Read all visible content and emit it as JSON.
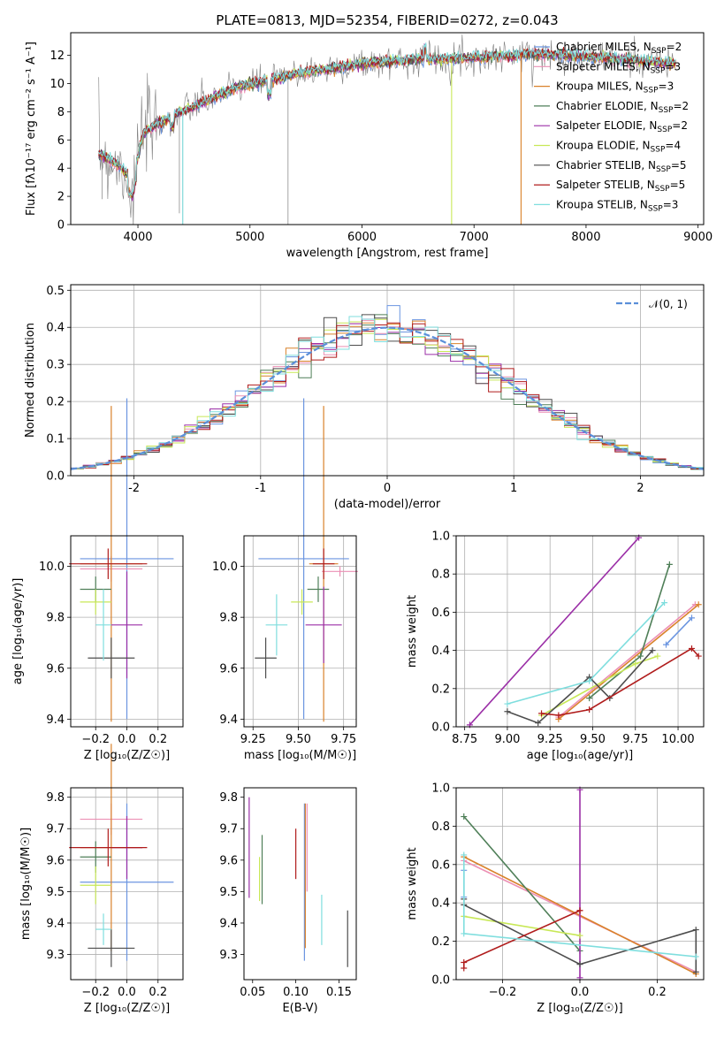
{
  "colors": {
    "chabrier_miles": "#6b95e0",
    "salpeter_miles": "#ec8fb4",
    "kroupa_miles": "#d9822b",
    "chabrier_elodie": "#4f7f58",
    "salpeter_elodie": "#9b2fa7",
    "kroupa_elodie": "#c8e857",
    "chabrier_stelib": "#4d4d4d",
    "salpeter_stelib": "#b01c1c",
    "kroupa_stelib": "#7fdede",
    "normal": "#5b8fd9",
    "data": "#7f7f7f"
  },
  "chart_data": [
    {
      "type": "line",
      "title": "PLATE=0813, MJD=52354, FIBERID=0272, z=0.043",
      "xlabel": "wavelength [Angstrom, rest frame]",
      "ylabel": "Flux [fλ10⁻¹⁷ erg cm⁻² s⁻¹ A⁻¹]",
      "xlim": [
        3400,
        9050
      ],
      "ylim": [
        0,
        13.6
      ],
      "xticks": [
        4000,
        5000,
        6000,
        7000,
        8000,
        9000
      ],
      "yticks": [
        0,
        2,
        4,
        6,
        8,
        10,
        12
      ],
      "x": [
        3650,
        3800,
        3950,
        4050,
        4300,
        4600,
        4900,
        5200,
        5500,
        6000,
        6500,
        7000,
        7500,
        8000,
        8500,
        8800
      ],
      "y": [
        5.0,
        4.4,
        3.2,
        6.5,
        7.7,
        8.7,
        9.8,
        10.3,
        10.8,
        11.4,
        11.7,
        11.8,
        12.1,
        11.9,
        11.6,
        11.4
      ],
      "legend": [
        {
          "label": "Chabrier MILES, N",
          "sub": "SSP",
          "tail": "=2",
          "color_key": "chabrier_miles"
        },
        {
          "label": "Salpeter MILES, N",
          "sub": "SSP",
          "tail": "=3",
          "color_key": "salpeter_miles"
        },
        {
          "label": "Kroupa MILES, N",
          "sub": "SSP",
          "tail": "=3",
          "color_key": "kroupa_miles"
        },
        {
          "label": "Chabrier ELODIE, N",
          "sub": "SSP",
          "tail": "=2",
          "color_key": "chabrier_elodie"
        },
        {
          "label": "Salpeter ELODIE, N",
          "sub": "SSP",
          "tail": "=2",
          "color_key": "salpeter_elodie"
        },
        {
          "label": "Kroupa ELODIE, N",
          "sub": "SSP",
          "tail": "=4",
          "color_key": "kroupa_elodie"
        },
        {
          "label": "Chabrier STELIB, N",
          "sub": "SSP",
          "tail": "=5",
          "color_key": "chabrier_stelib"
        },
        {
          "label": "Salpeter STELIB, N",
          "sub": "SSP",
          "tail": "=5",
          "color_key": "salpeter_stelib"
        },
        {
          "label": "Kroupa STELIB, N",
          "sub": "SSP",
          "tail": "=3",
          "color_key": "kroupa_stelib"
        }
      ],
      "legend_placement": "right"
    },
    {
      "type": "line",
      "xlabel": "(data-model)/error",
      "ylabel": "Normed distribution",
      "xlim": [
        -2.5,
        2.5
      ],
      "ylim": [
        0,
        0.515
      ],
      "xticks": [
        -2,
        -1,
        0,
        1,
        2
      ],
      "yticks": [
        0.0,
        0.1,
        0.2,
        0.3,
        0.4,
        0.5
      ],
      "grid": true,
      "legend": "𝒩(0, 1)",
      "legend_placement": "top-right"
    },
    {
      "type": "scatter",
      "xlabel": "Z [log₁₀(Z/Z☉)]",
      "ylabel": "age  [log₁₀(age/yr)]",
      "xlim": [
        -0.36,
        0.36
      ],
      "ylim": [
        9.37,
        10.12
      ],
      "xticks": [
        -0.2,
        0.0,
        0.2
      ],
      "xticklabels": [
        "−0.2",
        "0.0",
        "0.2"
      ],
      "yticks": [
        9.4,
        9.6,
        9.8,
        10.0
      ],
      "grid": true,
      "points": [
        {
          "k": "chabrier_miles",
          "x": 0.0,
          "xerr": 0.3,
          "y": 10.03,
          "yerr": 0.63
        },
        {
          "k": "salpeter_miles",
          "x": -0.1,
          "xerr": 0.2,
          "y": 9.99,
          "yerr": 0.05
        },
        {
          "k": "kroupa_miles",
          "x": -0.1,
          "xerr": 0.2,
          "y": 10.01,
          "yerr": 0.62
        },
        {
          "k": "chabrier_elodie",
          "x": -0.2,
          "xerr": 0.1,
          "y": 9.91,
          "yerr": 0.05
        },
        {
          "k": "salpeter_elodie",
          "x": 0.0,
          "xerr": 0.1,
          "y": 9.77,
          "yerr": 0.21
        },
        {
          "k": "kroupa_elodie",
          "x": -0.2,
          "xerr": 0.1,
          "y": 9.86,
          "yerr": 0.05
        },
        {
          "k": "chabrier_stelib",
          "x": -0.1,
          "xerr": 0.15,
          "y": 9.64,
          "yerr": 0.08
        },
        {
          "k": "salpeter_stelib",
          "x": -0.12,
          "xerr": 0.25,
          "y": 10.01,
          "yerr": 0.06
        },
        {
          "k": "kroupa_stelib",
          "x": -0.15,
          "xerr": 0.05,
          "y": 9.77,
          "yerr": 0.14
        }
      ]
    },
    {
      "type": "scatter",
      "xlabel": "mass [log₁₀(M/M☉)]",
      "ylabel": "",
      "xlim": [
        9.2,
        9.82
      ],
      "ylim": [
        9.37,
        10.12
      ],
      "xticks": [
        9.25,
        9.5,
        9.75
      ],
      "xticklabels": [
        "9.25",
        "9.50",
        "9.75"
      ],
      "yticks": [
        9.4,
        9.6,
        9.8,
        10.0
      ],
      "grid": true,
      "points": [
        {
          "k": "chabrier_miles",
          "x": 9.53,
          "xerr": 0.25,
          "y": 10.03,
          "yerr": 0.63
        },
        {
          "k": "salpeter_miles",
          "x": 9.73,
          "xerr": 0.1,
          "y": 9.98,
          "yerr": 0.02
        },
        {
          "k": "kroupa_miles",
          "x": 9.64,
          "xerr": 0.08,
          "y": 10.01,
          "yerr": 0.62
        },
        {
          "k": "chabrier_elodie",
          "x": 9.61,
          "xerr": 0.06,
          "y": 9.91,
          "yerr": 0.05
        },
        {
          "k": "salpeter_elodie",
          "x": 9.64,
          "xerr": 0.1,
          "y": 9.77,
          "yerr": 0.15
        },
        {
          "k": "kroupa_elodie",
          "x": 9.52,
          "xerr": 0.06,
          "y": 9.86,
          "yerr": 0.05
        },
        {
          "k": "chabrier_stelib",
          "x": 9.32,
          "xerr": 0.06,
          "y": 9.64,
          "yerr": 0.08
        },
        {
          "k": "salpeter_stelib",
          "x": 9.64,
          "xerr": 0.06,
          "y": 10.01,
          "yerr": 0.06
        },
        {
          "k": "kroupa_stelib",
          "x": 9.38,
          "xerr": 0.06,
          "y": 9.77,
          "yerr": 0.12
        }
      ]
    },
    {
      "type": "line",
      "xlabel": "age  [log₁₀(age/yr)]",
      "ylabel": "mass weight",
      "xlim": [
        8.7,
        10.15
      ],
      "ylim": [
        0,
        1.0
      ],
      "xticks": [
        8.75,
        9.0,
        9.25,
        9.5,
        9.75,
        10.0
      ],
      "xticklabels": [
        "8.75",
        "9.00",
        "9.25",
        "9.50",
        "9.75",
        "10.00"
      ],
      "yticks": [
        0.0,
        0.2,
        0.4,
        0.6,
        0.8,
        1.0
      ],
      "grid": true,
      "series": [
        {
          "k": "chabrier_miles",
          "x": [
            9.93,
            10.08
          ],
          "y": [
            0.43,
            0.57
          ]
        },
        {
          "k": "salpeter_miles",
          "x": [
            9.3,
            10.1
          ],
          "y": [
            0.05,
            0.64
          ]
        },
        {
          "k": "kroupa_miles",
          "x": [
            9.3,
            10.12
          ],
          "y": [
            0.04,
            0.64
          ]
        },
        {
          "k": "chabrier_elodie",
          "x": [
            9.48,
            9.78,
            9.95
          ],
          "y": [
            0.15,
            0.37,
            0.85
          ]
        },
        {
          "k": "salpeter_elodie",
          "x": [
            8.78,
            9.77
          ],
          "y": [
            0.01,
            0.99
          ]
        },
        {
          "k": "kroupa_elodie",
          "x": [
            9.2,
            9.75,
            9.88
          ],
          "y": [
            0.06,
            0.33,
            0.37
          ]
        },
        {
          "k": "chabrier_stelib",
          "x": [
            9.0,
            9.18,
            9.48,
            9.6,
            9.85
          ],
          "y": [
            0.08,
            0.02,
            0.26,
            0.15,
            0.4
          ]
        },
        {
          "k": "salpeter_stelib",
          "x": [
            9.2,
            9.3,
            9.48,
            10.08,
            10.12
          ],
          "y": [
            0.07,
            0.06,
            0.09,
            0.41,
            0.37
          ]
        },
        {
          "k": "kroupa_stelib",
          "x": [
            9.0,
            9.48,
            9.92
          ],
          "y": [
            0.12,
            0.24,
            0.65
          ]
        }
      ]
    },
    {
      "type": "scatter",
      "xlabel": "Z [log₁₀(Z/Z☉)]",
      "ylabel": "mass [log₁₀(M/M☉)]",
      "xlim": [
        -0.36,
        0.36
      ],
      "ylim": [
        9.22,
        9.83
      ],
      "xticks": [
        -0.2,
        0.0,
        0.2
      ],
      "xticklabels": [
        "−0.2",
        "0.0",
        "0.2"
      ],
      "yticks": [
        9.3,
        9.4,
        9.5,
        9.6,
        9.7,
        9.8
      ],
      "grid": true,
      "points": [
        {
          "k": "chabrier_miles",
          "x": 0.0,
          "xerr": 0.3,
          "y": 9.53,
          "yerr": 0.25
        },
        {
          "k": "salpeter_miles",
          "x": -0.1,
          "xerr": 0.2,
          "y": 9.73,
          "yerr": 0.05
        },
        {
          "k": "kroupa_miles",
          "x": -0.1,
          "xerr": 0.2,
          "y": 9.64,
          "yerr": 0.33
        },
        {
          "k": "chabrier_elodie",
          "x": -0.2,
          "xerr": 0.1,
          "y": 9.61,
          "yerr": 0.05
        },
        {
          "k": "salpeter_elodie",
          "x": 0.0,
          "xerr": 0.1,
          "y": 9.64,
          "yerr": 0.1
        },
        {
          "k": "kroupa_elodie",
          "x": -0.2,
          "xerr": 0.1,
          "y": 9.52,
          "yerr": 0.06
        },
        {
          "k": "chabrier_stelib",
          "x": -0.1,
          "xerr": 0.15,
          "y": 9.32,
          "yerr": 0.06
        },
        {
          "k": "salpeter_stelib",
          "x": -0.12,
          "xerr": 0.25,
          "y": 9.64,
          "yerr": 0.06
        },
        {
          "k": "kroupa_stelib",
          "x": -0.15,
          "xerr": 0.05,
          "y": 9.38,
          "yerr": 0.05
        }
      ]
    },
    {
      "type": "scatter",
      "xlabel": "E(B-V)",
      "ylabel": "",
      "xlim": [
        0.04,
        0.17
      ],
      "ylim": [
        9.22,
        9.83
      ],
      "xticks": [
        0.05,
        0.1,
        0.15
      ],
      "xticklabels": [
        "0.05",
        "0.10",
        "0.15"
      ],
      "yticks": [
        9.3,
        9.4,
        9.5,
        9.6,
        9.7,
        9.8
      ],
      "grid": false,
      "points": [
        {
          "k": "chabrier_miles",
          "x": 0.11,
          "xerr": 0,
          "y": 9.53,
          "yerr": 0.25
        },
        {
          "k": "salpeter_miles",
          "x": 0.113,
          "xerr": 0,
          "y": 9.64,
          "yerr": 0.14
        },
        {
          "k": "kroupa_miles",
          "x": 0.111,
          "xerr": 0,
          "y": 9.55,
          "yerr": 0.23
        },
        {
          "k": "chabrier_elodie",
          "x": 0.061,
          "xerr": 0,
          "y": 9.57,
          "yerr": 0.11
        },
        {
          "k": "salpeter_elodie",
          "x": 0.046,
          "xerr": 0,
          "y": 9.64,
          "yerr": 0.16
        },
        {
          "k": "kroupa_elodie",
          "x": 0.058,
          "xerr": 0,
          "y": 9.54,
          "yerr": 0.07
        },
        {
          "k": "chabrier_stelib",
          "x": 0.16,
          "xerr": 0,
          "y": 9.35,
          "yerr": 0.09
        },
        {
          "k": "salpeter_stelib",
          "x": 0.1,
          "xerr": 0,
          "y": 9.62,
          "yerr": 0.08
        },
        {
          "k": "kroupa_stelib",
          "x": 0.13,
          "xerr": 0,
          "y": 9.41,
          "yerr": 0.08
        }
      ]
    },
    {
      "type": "line",
      "xlabel": "Z [log₁₀(Z/Z☉)]",
      "ylabel": "mass weight",
      "xlim": [
        -0.32,
        0.32
      ],
      "ylim": [
        0,
        1.0
      ],
      "xticks": [
        -0.2,
        0.0,
        0.2
      ],
      "xticklabels": [
        "−0.2",
        "0.0",
        "0.2"
      ],
      "yticks": [
        0.0,
        0.2,
        0.4,
        0.6,
        0.8,
        1.0
      ],
      "grid": true,
      "series": [
        {
          "k": "chabrier_miles",
          "x": [
            -0.3,
            -0.3
          ],
          "y": [
            0.43,
            0.57
          ]
        },
        {
          "k": "salpeter_miles",
          "x": [
            -0.3,
            0.3
          ],
          "y": [
            0.62,
            0.04
          ]
        },
        {
          "k": "kroupa_miles",
          "x": [
            -0.3,
            0.3
          ],
          "y": [
            0.64,
            0.03
          ]
        },
        {
          "k": "chabrier_elodie",
          "x": [
            -0.3,
            0.0
          ],
          "y": [
            0.85,
            0.15
          ]
        },
        {
          "k": "salpeter_elodie",
          "x": [
            0.0,
            0.0
          ],
          "y": [
            0.01,
            0.99
          ]
        },
        {
          "k": "kroupa_elodie",
          "x": [
            -0.3,
            0.0
          ],
          "y": [
            0.33,
            0.23
          ]
        },
        {
          "k": "chabrier_stelib",
          "x": [
            -0.3,
            -0.3,
            0.0,
            0.3,
            0.3
          ],
          "y": [
            0.42,
            0.39,
            0.08,
            0.26,
            0.04
          ]
        },
        {
          "k": "salpeter_stelib",
          "x": [
            -0.3,
            -0.3,
            0.0,
            0.0
          ],
          "y": [
            0.06,
            0.09,
            0.36,
            0.36
          ]
        },
        {
          "k": "kroupa_stelib",
          "x": [
            -0.3,
            -0.3,
            0.3
          ],
          "y": [
            0.65,
            0.24,
            0.12
          ]
        }
      ]
    }
  ]
}
